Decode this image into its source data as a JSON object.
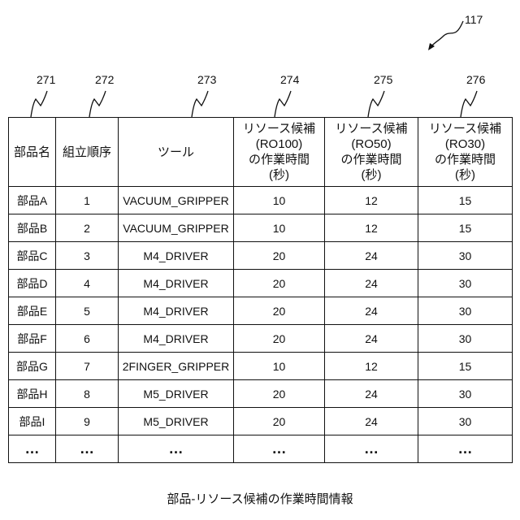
{
  "figure_ref": "117",
  "column_refs": [
    "271",
    "272",
    "273",
    "274",
    "275",
    "276"
  ],
  "table": {
    "headers": [
      [
        "部品名"
      ],
      [
        "組立順序"
      ],
      [
        "ツール"
      ],
      [
        "リソース候補",
        "(RO100)",
        "の作業時間",
        "(秒)"
      ],
      [
        "リソース候補",
        "(RO50)",
        "の作業時間",
        "(秒)"
      ],
      [
        "リソース候補",
        "(RO30)",
        "の作業時間",
        "(秒)"
      ]
    ],
    "rows": [
      [
        "部品A",
        "1",
        "VACUUM_GRIPPER",
        "10",
        "12",
        "15"
      ],
      [
        "部品B",
        "2",
        "VACUUM_GRIPPER",
        "10",
        "12",
        "15"
      ],
      [
        "部品C",
        "3",
        "M4_DRIVER",
        "20",
        "24",
        "30"
      ],
      [
        "部品D",
        "4",
        "M4_DRIVER",
        "20",
        "24",
        "30"
      ],
      [
        "部品E",
        "5",
        "M4_DRIVER",
        "20",
        "24",
        "30"
      ],
      [
        "部品F",
        "6",
        "M4_DRIVER",
        "20",
        "24",
        "30"
      ],
      [
        "部品G",
        "7",
        "2FINGER_GRIPPER",
        "10",
        "12",
        "15"
      ],
      [
        "部品H",
        "8",
        "M5_DRIVER",
        "20",
        "24",
        "30"
      ],
      [
        "部品I",
        "9",
        "M5_DRIVER",
        "20",
        "24",
        "30"
      ],
      [
        "…",
        "…",
        "…",
        "…",
        "…",
        "…"
      ]
    ]
  },
  "caption": "部品-リソース候補の作業時間情報"
}
